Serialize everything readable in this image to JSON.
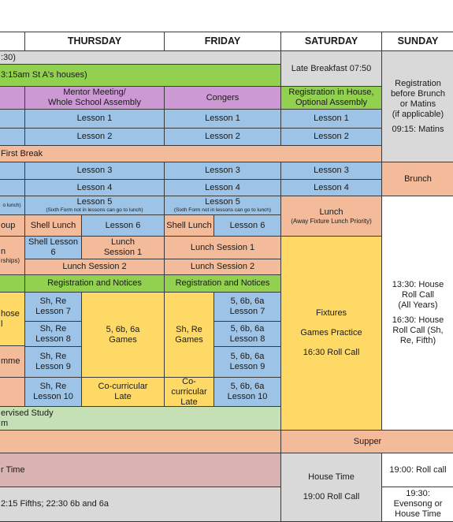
{
  "headers": {
    "col_left": "",
    "thursday": "THURSDAY",
    "friday": "FRIDAY",
    "saturday": "SATURDAY",
    "sunday": "SUNDAY"
  },
  "left_fragments": {
    "top": ":30)",
    "houses": "3:15am St A's houses)",
    "r5": "o lunch)",
    "r6": "oup",
    "r7a": "n",
    "r7b": "rships)",
    "r9a": "hose",
    "r9b": "l",
    "r11": "mme",
    "study_a": "ervised Study",
    "study_b": "m",
    "r15": "r Time",
    "r16": "2:15 Fifths; 22:30 6b and 6a"
  },
  "cells": {
    "late_breakfast": "Late Breakfast 07:50",
    "mentor_meeting": "Mentor Meeting/",
    "whole_school_assembly": "Whole School Assembly",
    "congers": "Congers",
    "registration_house": "Registration in House,",
    "optional_assembly": "Optional Assembly",
    "lesson1": "Lesson 1",
    "lesson2": "Lesson 2",
    "first_break": "First Break",
    "lesson3": "Lesson 3",
    "lesson4": "Lesson 4",
    "brunch": "Brunch",
    "lesson5": "Lesson 5",
    "sixth_form_note": "(Sixth Form not in lessons can go to lunch)",
    "lunch": "Lunch",
    "away_fixture": "(Away Fixture Lunch Priority)",
    "shell_lunch": "Shell Lunch",
    "lesson6": "Lesson 6",
    "shell_lesson": "Shell Lesson",
    "six": "6",
    "lunch_word": "Lunch",
    "session1": "Session 1",
    "lunch_session1": "Lunch Session 1",
    "lunch_session2": "Lunch Session 2",
    "registration_notices": "Registration and Notices",
    "sh_re": "Sh, Re",
    "lesson7": "Lesson 7",
    "lesson8": "Lesson 8",
    "lesson9": "Lesson 9",
    "lesson10": "Lesson 10",
    "six_b_a": "5, 6b, 6a",
    "games": "Games",
    "co_curricular": "Co-curricular",
    "late": "Late",
    "fixtures": "Fixtures",
    "games_practice": "Games Practice",
    "roll_call_1630": "16:30 Roll Call",
    "supper": "Supper",
    "house_time": "House Time",
    "roll_call_1900": "19:00 Roll Call"
  },
  "sunday": {
    "reg1": "Registration",
    "reg2": "before Brunch",
    "reg3": "or Matins",
    "reg4": "(if applicable)",
    "matins": "09:15: Matins",
    "h1": "13:30: House",
    "h2": "Roll Call",
    "h3": "(All Years)",
    "h4": "16:30: House",
    "h5": "Roll Call (Sh,",
    "h6": "Re, Fifth)",
    "rollcall_1900": "19:00: Roll call",
    "e1": "19:30:",
    "e2": "Evensong or",
    "e3": "House Time"
  }
}
